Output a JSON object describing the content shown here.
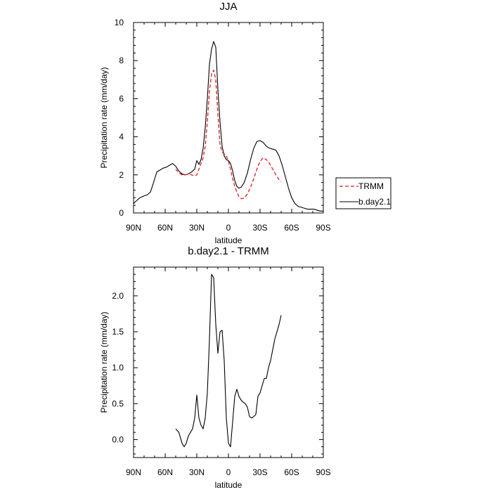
{
  "chart_data": [
    {
      "type": "line",
      "title": "JJA",
      "xlabel": "latitude",
      "ylabel": "Precipitation rate (mm/day)",
      "xlim": [
        90,
        -90
      ],
      "ylim": [
        0,
        10
      ],
      "x_ticks": [
        90,
        60,
        30,
        0,
        -30,
        -60,
        -90
      ],
      "x_tick_labels": [
        "90N",
        "60N",
        "30N",
        "0",
        "30S",
        "60S",
        "90S"
      ],
      "y_ticks": [
        0,
        2,
        4,
        6,
        8,
        10
      ],
      "y_tick_labels": [
        "0",
        "2",
        "4",
        "6",
        "8",
        "10"
      ],
      "grid": false,
      "legend_position": "right",
      "series": [
        {
          "name": "b.day2.1",
          "color": "#000000",
          "dash": "solid",
          "x": [
            90,
            87,
            84,
            80,
            77,
            74,
            71,
            68,
            65,
            62,
            59,
            56,
            53,
            50,
            47,
            44,
            41,
            38,
            35,
            32,
            30,
            28,
            26,
            24,
            22,
            20,
            18,
            16,
            14,
            12,
            10,
            8,
            6,
            4,
            2,
            0,
            -2,
            -4,
            -6,
            -8,
            -10,
            -12,
            -15,
            -18,
            -21,
            -24,
            -27,
            -30,
            -33,
            -36,
            -39,
            -42,
            -45,
            -48,
            -51,
            -54,
            -57,
            -60,
            -63,
            -66,
            -69,
            -72,
            -75,
            -78,
            -81,
            -84,
            -87,
            -90
          ],
          "y": [
            0.5,
            0.65,
            0.8,
            0.9,
            0.95,
            1.1,
            1.6,
            2.15,
            2.25,
            2.35,
            2.4,
            2.5,
            2.6,
            2.45,
            2.2,
            2.05,
            2.0,
            2.05,
            2.15,
            2.3,
            2.75,
            2.55,
            2.8,
            3.4,
            4.5,
            6.0,
            7.8,
            8.6,
            9.0,
            8.7,
            6.5,
            4.8,
            3.5,
            3.0,
            2.8,
            2.75,
            2.6,
            2.2,
            1.7,
            1.4,
            1.3,
            1.35,
            1.6,
            2.1,
            2.8,
            3.4,
            3.75,
            3.8,
            3.7,
            3.5,
            3.4,
            3.35,
            3.3,
            3.0,
            2.5,
            1.9,
            1.3,
            0.8,
            0.5,
            0.35,
            0.3,
            0.25,
            0.2,
            0.2,
            0.2,
            0.15,
            0.1,
            0.1
          ]
        },
        {
          "name": "TRMM",
          "color": "#e41a1c",
          "dash": "dashed",
          "x": [
            50,
            47,
            44,
            41,
            38,
            35,
            32,
            30,
            28,
            26,
            24,
            22,
            20,
            18,
            16,
            14,
            12,
            10,
            8,
            6,
            4,
            2,
            0,
            -2,
            -4,
            -6,
            -8,
            -10,
            -12,
            -15,
            -18,
            -21,
            -24,
            -27,
            -30,
            -33,
            -36,
            -39,
            -42,
            -45,
            -48,
            -50
          ],
          "y": [
            2.3,
            2.1,
            2.0,
            2.0,
            2.05,
            2.0,
            1.95,
            2.0,
            2.3,
            2.6,
            2.9,
            3.5,
            4.8,
            6.4,
            7.3,
            7.5,
            7.0,
            5.2,
            3.6,
            3.2,
            3.1,
            3.0,
            2.7,
            2.3,
            1.8,
            1.4,
            1.1,
            0.85,
            0.75,
            0.78,
            1.0,
            1.35,
            1.8,
            2.3,
            2.7,
            2.9,
            2.8,
            2.6,
            2.3,
            2.0,
            1.75,
            1.65
          ]
        }
      ]
    },
    {
      "type": "line",
      "title": "b.day2.1 - TRMM",
      "xlabel": "latitude",
      "ylabel": "Precipitation rate (mm/day)",
      "xlim": [
        90,
        -90
      ],
      "ylim": [
        -0.25,
        2.4
      ],
      "x_ticks": [
        90,
        60,
        30,
        0,
        -30,
        -60,
        -90
      ],
      "x_tick_labels": [
        "90N",
        "60N",
        "30N",
        "0",
        "30S",
        "60S",
        "90S"
      ],
      "y_ticks": [
        0,
        0.5,
        1.0,
        1.5,
        2.0
      ],
      "y_tick_labels": [
        "0.0",
        "0.5",
        "1.0",
        "1.5",
        "2.0"
      ],
      "grid": false,
      "series": [
        {
          "color": "#000000",
          "dash": "solid",
          "x": [
            50,
            47,
            44,
            42,
            40,
            38,
            36,
            34,
            32,
            30,
            28,
            26,
            24,
            22,
            20,
            18,
            16,
            14,
            12,
            10,
            8,
            6,
            4,
            2,
            0,
            -2,
            -4,
            -6,
            -8,
            -10,
            -12,
            -14,
            -16,
            -18,
            -20,
            -22,
            -24,
            -26,
            -28,
            -30,
            -32,
            -34,
            -36,
            -38,
            -40,
            -42,
            -44,
            -46,
            -48,
            -50
          ],
          "y": [
            0.15,
            0.1,
            -0.05,
            -0.1,
            -0.05,
            0.05,
            0.1,
            0.15,
            0.3,
            0.62,
            0.3,
            0.2,
            0.15,
            0.3,
            0.65,
            1.4,
            2.3,
            2.25,
            1.6,
            1.2,
            1.5,
            1.52,
            1.1,
            0.3,
            -0.05,
            -0.1,
            0.25,
            0.6,
            0.7,
            0.6,
            0.55,
            0.52,
            0.5,
            0.45,
            0.32,
            0.3,
            0.32,
            0.35,
            0.6,
            0.65,
            0.75,
            0.85,
            0.85,
            1.0,
            1.1,
            1.25,
            1.4,
            1.5,
            1.6,
            1.73
          ]
        }
      ]
    }
  ]
}
